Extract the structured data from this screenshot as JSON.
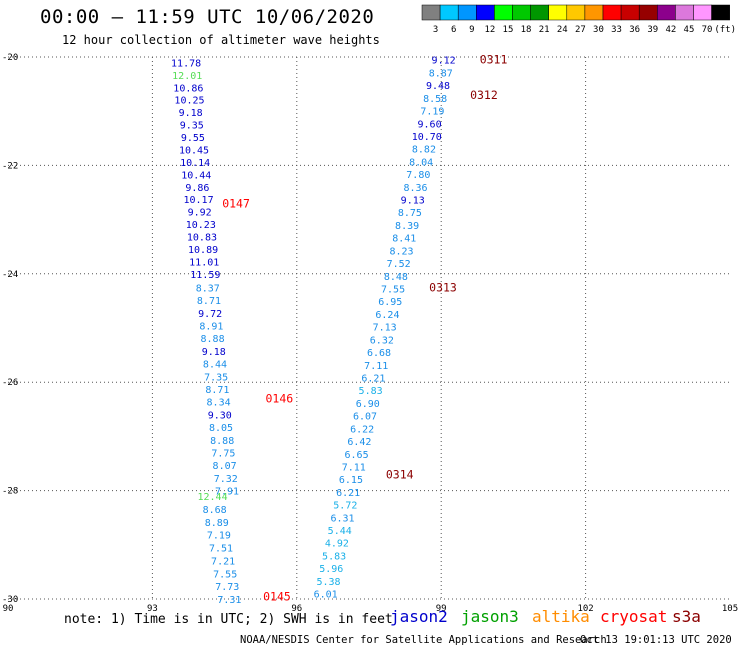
{
  "title": "00:00 – 11:59 UTC 10/06/2020",
  "subtitle": "12 hour collection of altimeter wave heights",
  "note": "note: 1) Time is in UTC; 2) SWH is in feet",
  "credit": "NOAA/NESDIS Center for Satellite Applications and Research",
  "timestamp": "Oct 13 19:01:13 UTC 2020",
  "satellites": [
    {
      "name": "jason2",
      "color": "#0000cc"
    },
    {
      "name": "jason3",
      "color": "#00a000"
    },
    {
      "name": "altika",
      "color": "#ff8c00"
    },
    {
      "name": "cryosat",
      "color": "#ff0000"
    },
    {
      "name": "s3a",
      "color": "#8b0000"
    }
  ],
  "colorbar": {
    "labels": [
      "3",
      "6",
      "9",
      "12",
      "15",
      "18",
      "21",
      "24",
      "27",
      "30",
      "33",
      "36",
      "39",
      "42",
      "45",
      "70",
      "(ft)"
    ],
    "colors": [
      "#808080",
      "#00c8ff",
      "#0096ff",
      "#0000ff",
      "#00ff00",
      "#00c800",
      "#009600",
      "#ffff00",
      "#ffc800",
      "#ff9600",
      "#ff0000",
      "#c80000",
      "#960000",
      "#8c008c",
      "#dc78dc",
      "#ff96ff",
      "#000000"
    ]
  },
  "chart_data": {
    "type": "scatter",
    "title": "00:00 – 11:59 UTC 10/06/2020",
    "xlim": [
      90,
      105
    ],
    "ylim": [
      -30,
      -20
    ],
    "xticks": [
      "90",
      "93",
      "96",
      "99",
      "102",
      "105"
    ],
    "yticks": [
      "-20",
      "-22",
      "-24",
      "-26",
      "-28",
      "-30"
    ],
    "grid": true,
    "pass_labels": [
      {
        "text": "0311",
        "lon": 99.8,
        "lat": -20.05,
        "color": "#8b0000"
      },
      {
        "text": "0312",
        "lon": 99.6,
        "lat": -20.7,
        "color": "#8b0000"
      },
      {
        "text": "0147",
        "lon": 94.45,
        "lat": -22.7,
        "color": "#ff0000"
      },
      {
        "text": "0313",
        "lon": 98.75,
        "lat": -24.25,
        "color": "#8b0000"
      },
      {
        "text": "0146",
        "lon": 95.35,
        "lat": -26.3,
        "color": "#ff0000"
      },
      {
        "text": "0314",
        "lon": 97.85,
        "lat": -27.7,
        "color": "#8b0000"
      },
      {
        "text": "0145",
        "lon": 95.3,
        "lat": -29.95,
        "color": "#ff0000"
      }
    ],
    "series": [
      {
        "track": "0147",
        "lon_start": 93.7,
        "lon_end": 94.1,
        "lat_start": -20.1,
        "lat_end": -24.0,
        "values": [
          "11.78",
          "12.01",
          "10.86",
          "10.25",
          "9.18",
          "9.35",
          "9.55",
          "10.45",
          "10.14",
          "10.44",
          "9.86",
          "10.17",
          "9.92",
          "10.23",
          "10.83",
          "10.89",
          "11.01",
          "11.59"
        ]
      },
      {
        "track": "0146",
        "lon_start": 94.15,
        "lon_end": 94.55,
        "lat_start": -24.25,
        "lat_end": -28.0,
        "values": [
          "8.37",
          "8.71",
          "9.72",
          "8.91",
          "8.88",
          "9.18",
          "8.44",
          "7.35",
          "8.71",
          "8.34",
          "9.30",
          "8.05",
          "8.88",
          "7.75",
          "8.07",
          "7.32",
          "7.91"
        ]
      },
      {
        "track": "0145",
        "lon_start": 94.25,
        "lon_end": 94.6,
        "lat_start": -28.1,
        "lat_end": -30.0,
        "values": [
          "12.44",
          "8.68",
          "8.89",
          "7.19",
          "7.51",
          "7.21",
          "7.55",
          "7.73",
          "7.31"
        ]
      },
      {
        "track": "0311-0314",
        "lon_start": 99.05,
        "lon_end": 96.6,
        "lat_start": -20.05,
        "lat_end": -29.9,
        "values": [
          "9.12",
          "8.87",
          "9.48",
          "8.58",
          "7.19",
          "9.60",
          "10.70",
          "8.82",
          "8.04",
          "7.80",
          "8.36",
          "9.13",
          "8.75",
          "8.39",
          "8.41",
          "8.23",
          "7.52",
          "8.48",
          "7.55",
          "6.95",
          "6.24",
          "7.13",
          "6.32",
          "6.68",
          "7.11",
          "6.21",
          "5.83",
          "6.90",
          "6.07",
          "6.22",
          "6.42",
          "6.65",
          "7.11",
          "6.15",
          "6.21",
          "5.72",
          "6.31",
          "5.44",
          "4.92",
          "5.83",
          "5.96",
          "5.38",
          "6.01"
        ]
      }
    ]
  }
}
